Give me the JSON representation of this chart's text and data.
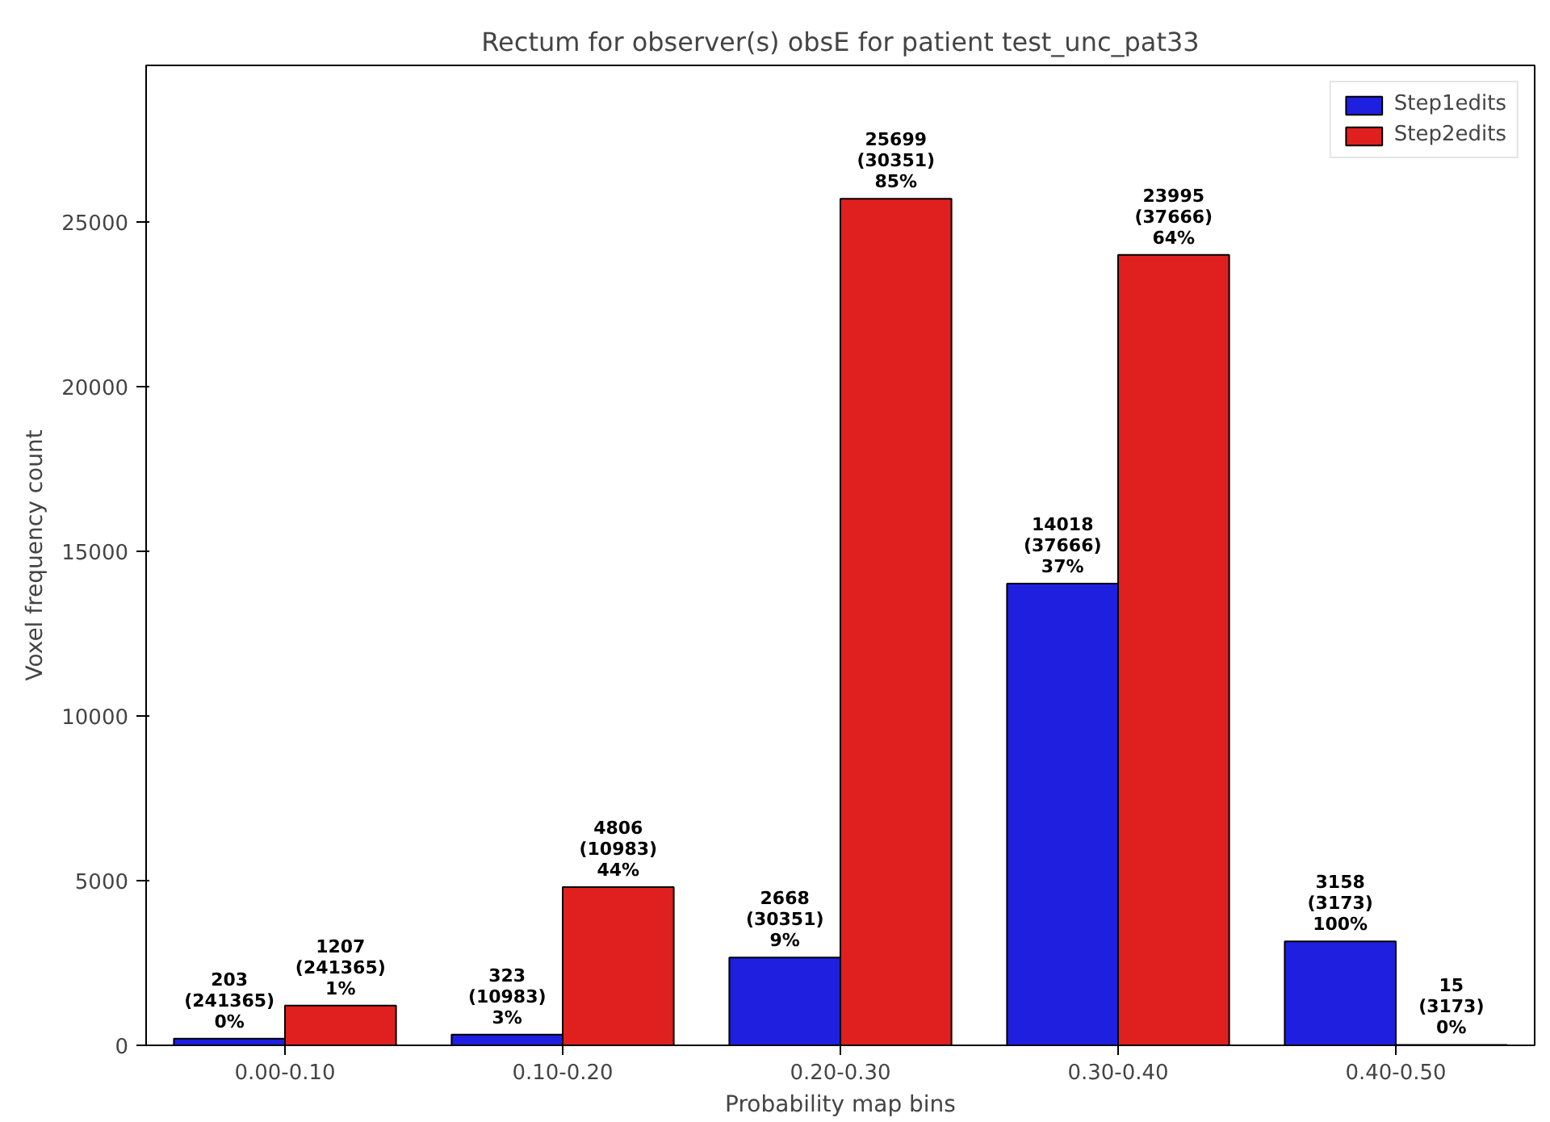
{
  "chart_data": {
    "type": "bar",
    "title": "Rectum for observer(s) obsE for patient test_unc_pat33",
    "xlabel": "Probability map bins",
    "ylabel": "Voxel frequency count",
    "categories": [
      "0.00-0.10",
      "0.10-0.20",
      "0.20-0.30",
      "0.30-0.40",
      "0.40-0.50"
    ],
    "series": [
      {
        "name": "Step1edits",
        "color": "#1f1fe0",
        "values": [
          203,
          323,
          2668,
          14018,
          3158
        ],
        "value_labels": [
          "203\n(241365)\n0%",
          "323\n(10983)\n3%",
          "2668\n(30351)\n9%",
          "14018\n(37666)\n37%",
          "3158\n(3173)\n100%"
        ]
      },
      {
        "name": "Step2edits",
        "color": "#e01f1f",
        "values": [
          1207,
          4806,
          25699,
          23995,
          15
        ],
        "value_labels": [
          "1207\n(241365)\n1%",
          "4806\n(10983)\n44%",
          "25699\n(30351)\n85%",
          "23995\n(37666)\n64%",
          "15\n(3173)\n0%"
        ]
      }
    ],
    "ylim": [
      0,
      29750
    ],
    "yticks": [
      0,
      5000,
      10000,
      15000,
      20000,
      25000
    ],
    "grid": false,
    "legend": "top right"
  }
}
